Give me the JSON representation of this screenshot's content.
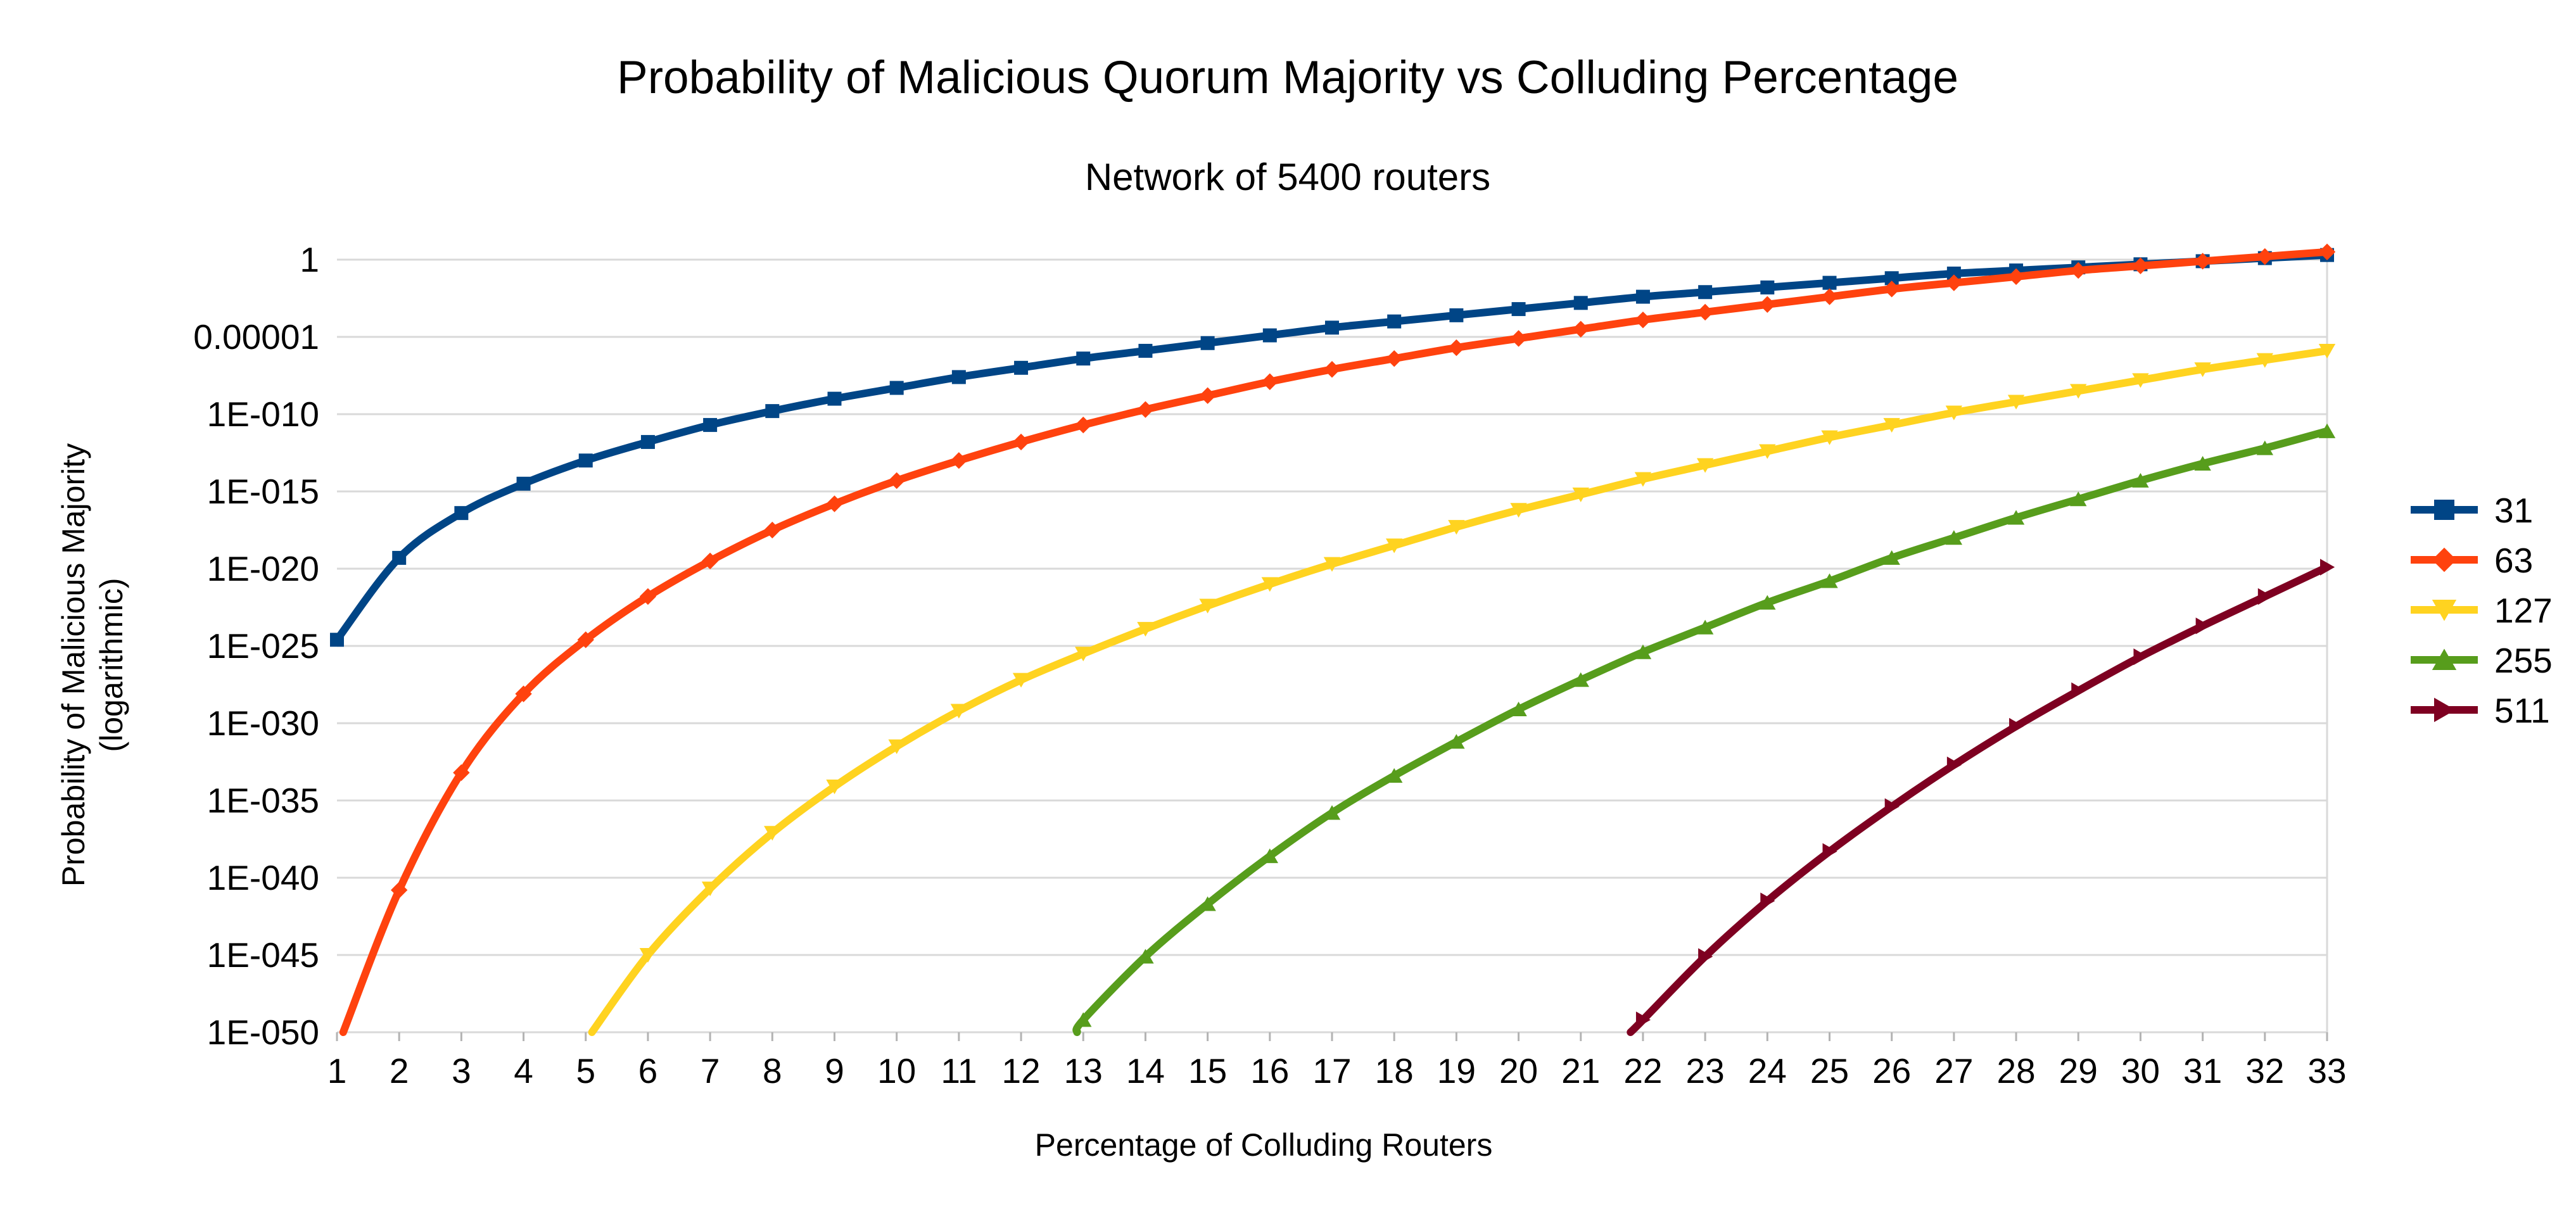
{
  "chart_data": {
    "type": "line",
    "title": "Probability of Malicious Quorum Majority vs Colluding Percentage",
    "subtitle": "Network of 5400 routers",
    "xlabel": "Percentage of Colluding Routers",
    "ylabel_line1": "Probability of Malicious Majority",
    "ylabel_line2": "(logarithmic)",
    "y_scale": "log",
    "ylim_exponent": [
      -50,
      0
    ],
    "y_tick_labels": [
      "1",
      "0.00001",
      "1E-010",
      "1E-015",
      "1E-020",
      "1E-025",
      "1E-030",
      "1E-035",
      "1E-040",
      "1E-045",
      "1E-050"
    ],
    "x_tick_labels": [
      "1",
      "2",
      "3",
      "4",
      "5",
      "6",
      "7",
      "8",
      "9",
      "10",
      "11",
      "12",
      "13",
      "14",
      "15",
      "16",
      "17",
      "18",
      "19",
      "20",
      "21",
      "22",
      "23",
      "24",
      "25",
      "26",
      "27",
      "28",
      "29",
      "30",
      "31",
      "32",
      "33"
    ],
    "xlim": [
      1,
      33
    ],
    "grid": "horizontal",
    "legend_position": "right",
    "series": [
      {
        "name": "31",
        "color": "#004586",
        "marker": "square",
        "x": [
          1,
          2,
          3,
          4,
          5,
          6,
          7,
          8,
          9,
          10,
          11,
          12,
          13,
          14,
          15,
          16,
          17,
          18,
          19,
          20,
          21,
          22,
          23,
          24,
          25,
          26,
          27,
          28,
          29,
          30,
          31,
          32,
          33
        ],
        "log10_y": [
          -24.6,
          -19.3,
          -16.4,
          -14.5,
          -13.0,
          -11.8,
          -10.7,
          -9.8,
          -9.0,
          -8.3,
          -7.6,
          -7.0,
          -6.4,
          -5.9,
          -5.4,
          -4.9,
          -4.4,
          -4.0,
          -3.6,
          -3.2,
          -2.8,
          -2.4,
          -2.1,
          -1.8,
          -1.5,
          -1.2,
          -0.9,
          -0.7,
          -0.5,
          -0.3,
          -0.1,
          0.1,
          0.3
        ]
      },
      {
        "name": "63",
        "color": "#ff420e",
        "marker": "diamond",
        "x": [
          1.1,
          2,
          3,
          4,
          5,
          6,
          7,
          8,
          9,
          10,
          11,
          12,
          13,
          14,
          15,
          16,
          17,
          18,
          19,
          20,
          21,
          22,
          23,
          24,
          25,
          26,
          27,
          28,
          29,
          30,
          31,
          32,
          33
        ],
        "log10_y": [
          -50,
          -40.8,
          -33.2,
          -28.1,
          -24.6,
          -21.8,
          -19.5,
          -17.5,
          -15.8,
          -14.3,
          -13.0,
          -11.8,
          -10.7,
          -9.7,
          -8.8,
          -7.9,
          -7.1,
          -6.4,
          -5.7,
          -5.1,
          -4.5,
          -3.9,
          -3.4,
          -2.9,
          -2.4,
          -1.9,
          -1.5,
          -1.1,
          -0.7,
          -0.4,
          -0.1,
          0.2,
          0.5
        ]
      },
      {
        "name": "127",
        "color": "#ffd320",
        "marker": "triangle-down",
        "x": [
          5.1,
          6,
          7,
          8,
          9,
          10,
          11,
          12,
          13,
          14,
          15,
          16,
          17,
          18,
          19,
          20,
          21,
          22,
          23,
          24,
          25,
          26,
          27,
          28,
          29,
          30,
          31,
          32,
          33
        ],
        "log10_y": [
          -50,
          -45.0,
          -40.7,
          -37.1,
          -34.1,
          -31.5,
          -29.2,
          -27.2,
          -25.5,
          -23.9,
          -22.4,
          -21.0,
          -19.7,
          -18.5,
          -17.3,
          -16.2,
          -15.2,
          -14.2,
          -13.3,
          -12.4,
          -11.5,
          -10.7,
          -9.9,
          -9.2,
          -8.5,
          -7.8,
          -7.1,
          -6.5,
          -5.9
        ]
      },
      {
        "name": "255",
        "color": "#579d1c",
        "marker": "triangle-up",
        "x": [
          12.9,
          13,
          14,
          15,
          16,
          17,
          18,
          19,
          20,
          21,
          22,
          23,
          24,
          25,
          26,
          27,
          28,
          29,
          30,
          31,
          32,
          33
        ],
        "log10_y": [
          -50,
          -49.2,
          -45.1,
          -41.7,
          -38.6,
          -35.8,
          -33.4,
          -31.2,
          -29.1,
          -27.2,
          -25.4,
          -23.8,
          -22.2,
          -20.8,
          -19.3,
          -18.0,
          -16.7,
          -15.5,
          -14.3,
          -13.2,
          -12.2,
          -11.1
        ]
      },
      {
        "name": "511",
        "color": "#7e0021",
        "marker": "triangle-right",
        "x": [
          21.8,
          22,
          23,
          24,
          25,
          26,
          27,
          28,
          29,
          30,
          31,
          32,
          33
        ],
        "log10_y": [
          -50,
          -49.2,
          -45.1,
          -41.5,
          -38.3,
          -35.4,
          -32.7,
          -30.2,
          -27.9,
          -25.7,
          -23.7,
          -21.8,
          -19.9
        ]
      }
    ]
  }
}
